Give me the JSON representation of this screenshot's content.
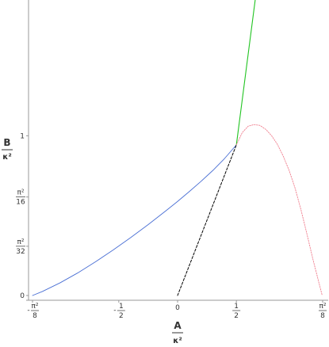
{
  "chart_data": {
    "type": "line",
    "xlabel": {
      "numerator": "A",
      "denominator": "κ²"
    },
    "ylabel": {
      "numerator": "B",
      "denominator": "κ²"
    },
    "pi": 3.14159265,
    "xlim": [
      -1.2337,
      1.2337
    ],
    "ylim": [
      0,
      1.85
    ],
    "x_ticks": [
      {
        "value": -1.2337,
        "sign": "-",
        "num": "π²",
        "den": "8"
      },
      {
        "value": -0.5,
        "sign": "-",
        "num": "1",
        "den": "2"
      },
      {
        "value": 0,
        "text": "0"
      },
      {
        "value": 0.5,
        "num": "1",
        "den": "2"
      },
      {
        "value": 1.2337,
        "num": "π²",
        "den": "8"
      }
    ],
    "y_ticks": [
      {
        "value": 0,
        "text": "0"
      },
      {
        "value": 0.3084,
        "num": "π²",
        "den": "32"
      },
      {
        "value": 0.6169,
        "num": "π²",
        "den": "16"
      },
      {
        "value": 1,
        "text": "1"
      }
    ],
    "series": [
      {
        "color": "#4a6fd4",
        "dash": "",
        "width": 0.9,
        "x": [
          -1.2337,
          -1.15,
          -1.0,
          -0.85,
          -0.7,
          -0.55,
          -0.4,
          -0.25,
          -0.1,
          0.0,
          0.1,
          0.2,
          0.3,
          0.4,
          0.5
        ],
        "y": [
          0.0,
          0.025,
          0.079,
          0.141,
          0.21,
          0.284,
          0.362,
          0.444,
          0.53,
          0.589,
          0.651,
          0.715,
          0.783,
          0.858,
          0.943
        ]
      },
      {
        "color": "#22c422",
        "dash": "",
        "width": 1.1,
        "x": [
          0.5,
          0.66
        ],
        "y": [
          0.943,
          1.85
        ]
      },
      {
        "color": "#000000",
        "dash": "3,2",
        "width": 1.0,
        "x": [
          0.0,
          0.5
        ],
        "y": [
          0.0,
          0.943
        ]
      },
      {
        "color": "#f08090",
        "dash": "1.5,1.5",
        "width": 0.9,
        "x": [
          0.5,
          0.55,
          0.6,
          0.65,
          0.7,
          0.75,
          0.8,
          0.85,
          0.9,
          0.95,
          1.0,
          1.05,
          1.1,
          1.15,
          1.2,
          1.23
        ],
        "y": [
          0.943,
          1.02,
          1.06,
          1.07,
          1.065,
          1.04,
          1.0,
          0.945,
          0.87,
          0.78,
          0.67,
          0.535,
          0.385,
          0.23,
          0.085,
          0.0
        ]
      }
    ]
  }
}
